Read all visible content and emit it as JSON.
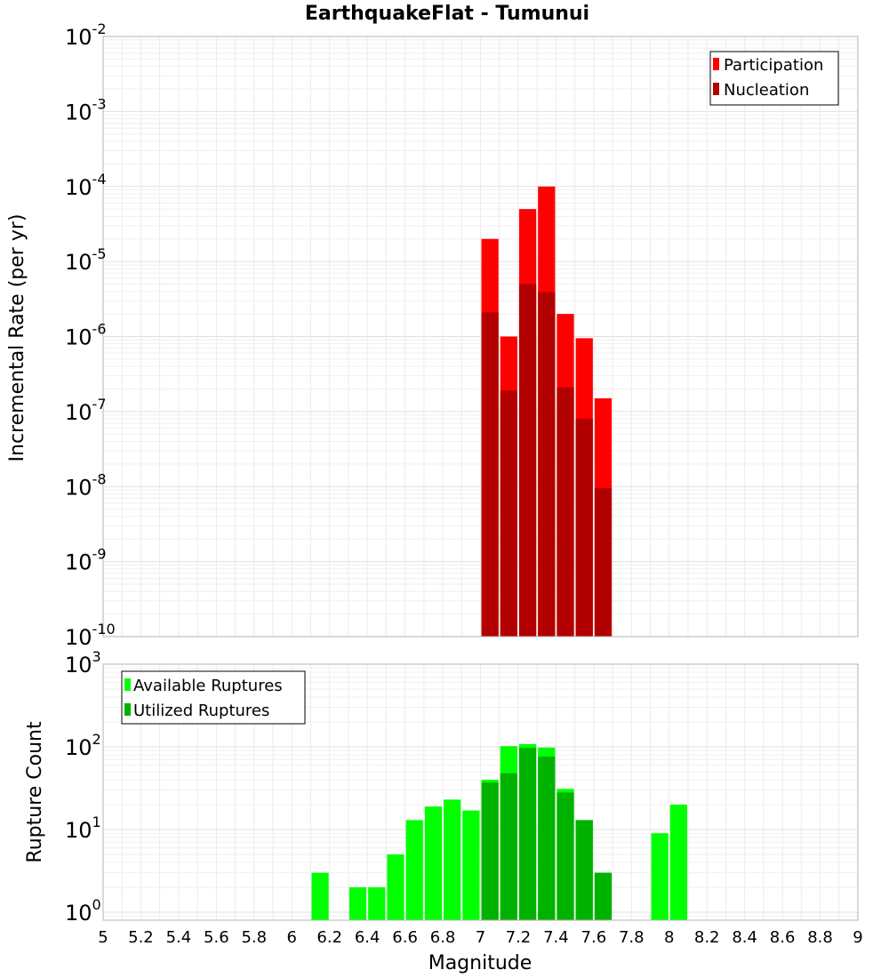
{
  "chart_data": [
    {
      "type": "bar",
      "id": "rates",
      "title": "EarthquakeFlat - Tumunui",
      "xlabel": "",
      "ylabel": "Incremental Rate (per yr)",
      "yscale": "log",
      "ylim": [
        1e-10,
        0.01
      ],
      "xlim": [
        5,
        9
      ],
      "yticks": [
        {
          "base": "10",
          "exp": "-10"
        },
        {
          "base": "10",
          "exp": "-9"
        },
        {
          "base": "10",
          "exp": "-8"
        },
        {
          "base": "10",
          "exp": "-7"
        },
        {
          "base": "10",
          "exp": "-6"
        },
        {
          "base": "10",
          "exp": "-5"
        },
        {
          "base": "10",
          "exp": "-4"
        },
        {
          "base": "10",
          "exp": "-3"
        },
        {
          "base": "10",
          "exp": "-2"
        }
      ],
      "legend_position": "top-right",
      "series": [
        {
          "name": "Participation",
          "color": "#ff0000",
          "x": [
            7.05,
            7.15,
            7.25,
            7.35,
            7.45,
            7.55,
            7.65
          ],
          "values": [
            2e-05,
            1e-06,
            5e-05,
            0.0001,
            2e-06,
            9.5e-07,
            1.5e-07
          ]
        },
        {
          "name": "Nucleation",
          "color": "#b20000",
          "x": [
            7.05,
            7.15,
            7.25,
            7.35,
            7.45,
            7.55,
            7.65
          ],
          "values": [
            2.1e-06,
            1.9e-07,
            5e-06,
            3.9e-06,
            2.1e-07,
            8e-08,
            9.5e-09
          ]
        }
      ]
    },
    {
      "type": "bar",
      "id": "counts",
      "title": "",
      "xlabel": "Magnitude",
      "ylabel": "Rupture Count",
      "yscale": "log",
      "ylim": [
        0.8,
        1000
      ],
      "xlim": [
        5,
        9
      ],
      "xticks": [
        "5",
        "5.2",
        "5.4",
        "5.6",
        "5.8",
        "6",
        "6.2",
        "6.4",
        "6.6",
        "6.8",
        "7",
        "7.2",
        "7.4",
        "7.6",
        "7.8",
        "8",
        "8.2",
        "8.4",
        "8.6",
        "8.8",
        "9"
      ],
      "yticks": [
        {
          "base": "10",
          "exp": "0"
        },
        {
          "base": "10",
          "exp": "1"
        },
        {
          "base": "10",
          "exp": "2"
        },
        {
          "base": "10",
          "exp": "3"
        }
      ],
      "legend_position": "top-left",
      "series": [
        {
          "name": "Available Ruptures",
          "color": "#00ff00",
          "x": [
            6.15,
            6.35,
            6.45,
            6.55,
            6.65,
            6.75,
            6.85,
            6.95,
            7.05,
            7.15,
            7.25,
            7.35,
            7.45,
            7.55,
            7.65,
            7.95,
            8.05
          ],
          "values": [
            3,
            2,
            2,
            5,
            13,
            19,
            23,
            17,
            40,
            102,
            108,
            98,
            31,
            13,
            3,
            9,
            20
          ]
        },
        {
          "name": "Utilized Ruptures",
          "color": "#00b200",
          "x": [
            7.05,
            7.15,
            7.25,
            7.35,
            7.45,
            7.55,
            7.65
          ],
          "values": [
            37,
            48,
            97,
            76,
            28,
            13,
            3
          ]
        }
      ]
    }
  ]
}
